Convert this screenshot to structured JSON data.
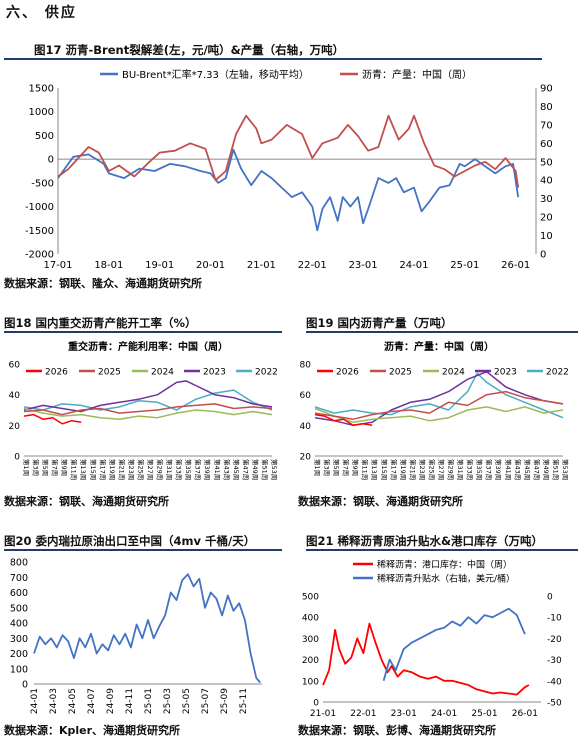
{
  "section": {
    "title": "六、  供应"
  },
  "figures": [
    {
      "title": "图17  沥青-Brent裂解差(左，元/吨）&产量（右轴，万吨）",
      "source": "数据来源：钢联、隆众、海通期货研究所"
    },
    {
      "title": "图18  国内重交沥青产能开工率（%）",
      "source": "数据来源：钢联、海通期货研究所"
    },
    {
      "title": "图19  国内沥青产量（万吨）",
      "source": "数据来源：钢联、海通期货研究所"
    },
    {
      "title": "图20  委内瑞拉原油出口至中国（4mv 千桶/天）",
      "source": "数据来源：Kpler、海通期货研究所"
    },
    {
      "title": "图21  稀释沥青原油升贴水&港口库存（万吨）",
      "source": "数据来源：钢联、彭博、海通期货研究所"
    }
  ],
  "chart_data": [
    {
      "type": "line",
      "legend": [
        "BU-Brent*汇率*7.33（左轴，移动平均）",
        "沥青：产量：中国（周）"
      ],
      "x_ticks": [
        "17-01",
        "18-01",
        "19-01",
        "20-01",
        "21-01",
        "22-01",
        "23-01",
        "24-01",
        "25-01",
        "26-01"
      ],
      "ylim_left": [
        -2000,
        1500
      ],
      "yticks_left": [
        -2000,
        -1500,
        -1000,
        -500,
        0,
        500,
        1000,
        1500
      ],
      "ylim_right": [
        0,
        90
      ],
      "yticks_right": [
        0,
        10,
        20,
        30,
        40,
        50,
        60,
        70,
        80,
        90
      ],
      "series": [
        {
          "name": "BU-Brent*汇率*7.33（左轴，移动平均）",
          "axis": "left",
          "color": "#4472c4",
          "x": [
            2017.0,
            2017.3,
            2017.6,
            2017.9,
            2018.0,
            2018.3,
            2018.6,
            2018.9,
            2019.2,
            2019.5,
            2019.8,
            2020.0,
            2020.15,
            2020.3,
            2020.45,
            2020.6,
            2020.8,
            2021.0,
            2021.2,
            2021.4,
            2021.6,
            2021.8,
            2022.0,
            2022.1,
            2022.2,
            2022.35,
            2022.5,
            2022.6,
            2022.75,
            2022.9,
            2023.0,
            2023.1,
            2023.3,
            2023.5,
            2023.65,
            2023.8,
            2024.0,
            2024.15,
            2024.3,
            2024.5,
            2024.7,
            2024.9,
            2025.0,
            2025.2,
            2025.4,
            2025.6,
            2025.8,
            2025.95,
            2026.05
          ],
          "y": [
            -400,
            50,
            100,
            -100,
            -300,
            -400,
            -200,
            -250,
            -100,
            -150,
            -250,
            -300,
            -500,
            -400,
            200,
            -200,
            -550,
            -250,
            -400,
            -600,
            -800,
            -700,
            -1000,
            -1500,
            -1050,
            -800,
            -1300,
            -800,
            -1000,
            -800,
            -1350,
            -1050,
            -400,
            -500,
            -400,
            -700,
            -600,
            -1100,
            -900,
            -600,
            -550,
            -100,
            -150,
            0,
            -150,
            -300,
            -150,
            -100,
            -800
          ]
        },
        {
          "name": "沥青：产量：中国（周）",
          "axis": "right",
          "color": "#c0504d",
          "x": [
            2017.0,
            2017.2,
            2017.4,
            2017.6,
            2017.8,
            2018.0,
            2018.2,
            2018.5,
            2018.8,
            2019.0,
            2019.3,
            2019.6,
            2019.9,
            2020.1,
            2020.3,
            2020.5,
            2020.7,
            2020.9,
            2021.0,
            2021.2,
            2021.5,
            2021.8,
            2022.0,
            2022.2,
            2022.5,
            2022.7,
            2022.9,
            2023.1,
            2023.3,
            2023.5,
            2023.7,
            2023.9,
            2024.0,
            2024.2,
            2024.4,
            2024.6,
            2024.8,
            2025.0,
            2025.2,
            2025.4,
            2025.6,
            2025.8,
            2026.0,
            2026.05
          ],
          "y": [
            42,
            46,
            52,
            58,
            55,
            45,
            48,
            42,
            50,
            55,
            56,
            60,
            57,
            40,
            45,
            65,
            75,
            68,
            60,
            62,
            70,
            65,
            52,
            60,
            63,
            70,
            64,
            56,
            58,
            75,
            62,
            68,
            75,
            60,
            48,
            46,
            42,
            45,
            48,
            50,
            46,
            52,
            45,
            36
          ]
        }
      ]
    },
    {
      "type": "line",
      "title": "重交沥青：产能利用率：中国（周）",
      "legend": [
        "2026",
        "2025",
        "2024",
        "2023",
        "2022"
      ],
      "x_ticks": [
        "第1周",
        "第3周",
        "第5周",
        "第7周",
        "第9周",
        "第11周",
        "第13周",
        "第15周",
        "第17周",
        "第19周",
        "第21周",
        "第23周",
        "第25周",
        "第27周",
        "第29周",
        "第31周",
        "第33周",
        "第35周",
        "第37周",
        "第39周",
        "第41周",
        "第43周",
        "第45周",
        "第47周",
        "第49周",
        "第51周",
        "第53周"
      ],
      "ylim": [
        0,
        60
      ],
      "yticks": [
        0,
        20,
        40,
        60
      ],
      "series": [
        {
          "name": "2026",
          "color": "#ff0000",
          "x": [
            1,
            3,
            5,
            7,
            9,
            11,
            13
          ],
          "y": [
            26,
            27,
            24,
            25,
            21,
            23,
            22
          ]
        },
        {
          "name": "2025",
          "color": "#c0504d",
          "x": [
            1,
            5,
            9,
            13,
            17,
            21,
            25,
            29,
            33,
            37,
            41,
            45,
            49,
            53
          ],
          "y": [
            29,
            30,
            27,
            30,
            31,
            28,
            29,
            30,
            32,
            33,
            34,
            31,
            32,
            31
          ]
        },
        {
          "name": "2024",
          "color": "#9bbb59",
          "x": [
            1,
            5,
            9,
            13,
            17,
            21,
            25,
            29,
            33,
            37,
            41,
            45,
            49,
            53
          ],
          "y": [
            31,
            28,
            26,
            27,
            25,
            24,
            26,
            25,
            28,
            30,
            29,
            27,
            29,
            27
          ]
        },
        {
          "name": "2023",
          "color": "#7030a0",
          "x": [
            1,
            5,
            9,
            13,
            17,
            21,
            25,
            29,
            33,
            35,
            37,
            41,
            45,
            49,
            53
          ],
          "y": [
            30,
            33,
            31,
            29,
            33,
            35,
            37,
            40,
            48,
            49,
            46,
            40,
            38,
            34,
            32
          ]
        },
        {
          "name": "2022",
          "color": "#4bacc6",
          "x": [
            1,
            5,
            9,
            13,
            17,
            21,
            25,
            29,
            33,
            37,
            41,
            45,
            49,
            53
          ],
          "y": [
            32,
            30,
            34,
            33,
            30,
            32,
            36,
            35,
            30,
            37,
            41,
            43,
            35,
            30
          ]
        }
      ]
    },
    {
      "type": "line",
      "title": "沥青：产量：中国（周）",
      "legend": [
        "2026",
        "2025",
        "2024",
        "2023",
        "2022"
      ],
      "x_ticks": [
        "第1周",
        "第3周",
        "第5周",
        "第7周",
        "第9周",
        "第11周",
        "第13周",
        "第15周",
        "第17周",
        "第19周",
        "第21周",
        "第23周",
        "第25周",
        "第27周",
        "第29周",
        "第31周",
        "第33周",
        "第35周",
        "第37周",
        "第39周",
        "第41周",
        "第43周",
        "第45周",
        "第47周",
        "第49周",
        "第51周",
        "第53周"
      ],
      "ylim": [
        20,
        80
      ],
      "yticks": [
        20,
        40,
        60,
        80
      ],
      "series": [
        {
          "name": "2026",
          "color": "#ff0000",
          "x": [
            1,
            3,
            5,
            7,
            9,
            11,
            13
          ],
          "y": [
            47,
            46,
            43,
            44,
            40,
            41,
            40
          ]
        },
        {
          "name": "2025",
          "color": "#c0504d",
          "x": [
            1,
            5,
            9,
            13,
            17,
            21,
            25,
            29,
            33,
            37,
            41,
            45,
            49,
            53
          ],
          "y": [
            48,
            46,
            44,
            47,
            49,
            50,
            48,
            55,
            53,
            60,
            62,
            58,
            56,
            54
          ]
        },
        {
          "name": "2024",
          "color": "#9bbb59",
          "x": [
            1,
            5,
            9,
            13,
            17,
            21,
            25,
            29,
            33,
            37,
            41,
            45,
            49,
            53
          ],
          "y": [
            51,
            46,
            42,
            44,
            45,
            46,
            43,
            45,
            50,
            52,
            49,
            52,
            48,
            50
          ]
        },
        {
          "name": "2023",
          "color": "#7030a0",
          "x": [
            1,
            5,
            9,
            13,
            17,
            21,
            25,
            29,
            33,
            37,
            41,
            45,
            49,
            53
          ],
          "y": [
            45,
            43,
            40,
            42,
            50,
            55,
            57,
            62,
            70,
            75,
            65,
            60,
            56,
            54
          ]
        },
        {
          "name": "2022",
          "color": "#4bacc6",
          "x": [
            1,
            5,
            9,
            13,
            17,
            21,
            25,
            29,
            33,
            35,
            37,
            41,
            45,
            49,
            53
          ],
          "y": [
            52,
            48,
            50,
            48,
            47,
            52,
            54,
            50,
            62,
            74,
            68,
            60,
            55,
            50,
            45
          ]
        }
      ]
    },
    {
      "type": "line",
      "x_ticks": [
        "24-01",
        "24-03",
        "24-05",
        "24-07",
        "24-09",
        "24-11",
        "25-01",
        "25-03",
        "25-05",
        "25-07",
        "25-09",
        "25-11"
      ],
      "ylim": [
        0,
        800
      ],
      "yticks": [
        0,
        100,
        200,
        300,
        400,
        500,
        600,
        700,
        800
      ],
      "series": [
        {
          "name": "",
          "color": "#4472c4",
          "x": [
            0,
            0.3,
            0.6,
            0.9,
            1.2,
            1.5,
            1.8,
            2.1,
            2.4,
            2.7,
            3.0,
            3.3,
            3.6,
            3.9,
            4.2,
            4.5,
            4.8,
            5.1,
            5.4,
            5.7,
            6.0,
            6.3,
            6.6,
            6.9,
            7.2,
            7.5,
            7.8,
            8.1,
            8.4,
            8.7,
            9.0,
            9.3,
            9.6,
            9.9,
            10.2,
            10.5,
            10.8,
            11.1,
            11.4,
            11.7,
            11.9
          ],
          "y": [
            200,
            310,
            260,
            300,
            240,
            320,
            280,
            170,
            300,
            240,
            330,
            200,
            260,
            220,
            320,
            260,
            330,
            240,
            390,
            300,
            420,
            300,
            380,
            450,
            600,
            550,
            680,
            720,
            640,
            690,
            500,
            600,
            560,
            450,
            580,
            480,
            530,
            420,
            200,
            40,
            10
          ]
        }
      ]
    },
    {
      "type": "line",
      "legend": [
        "稀释沥青：港口库存：中国（周）",
        "稀释沥青升贴水（右轴，美元/桶）"
      ],
      "x_ticks": [
        "21-01",
        "22-01",
        "23-01",
        "24-01",
        "25-01",
        "26-01"
      ],
      "ylim_left": [
        0,
        500
      ],
      "yticks_left": [
        0,
        100,
        200,
        300,
        400,
        500
      ],
      "ylim_right": [
        -50,
        0
      ],
      "yticks_right": [
        -50,
        -40,
        -30,
        -20,
        -10,
        0
      ],
      "series": [
        {
          "name": "稀释沥青：港口库存：中国（周）",
          "axis": "left",
          "color": "#ff0000",
          "x": [
            2021.0,
            2021.15,
            2021.3,
            2021.4,
            2021.55,
            2021.7,
            2021.85,
            2022.0,
            2022.15,
            2022.3,
            2022.45,
            2022.6,
            2022.7,
            2022.85,
            2023.0,
            2023.2,
            2023.4,
            2023.6,
            2023.8,
            2024.0,
            2024.2,
            2024.4,
            2024.6,
            2024.8,
            2025.0,
            2025.2,
            2025.4,
            2025.6,
            2025.8,
            2026.0,
            2026.1
          ],
          "y": [
            80,
            150,
            340,
            250,
            180,
            210,
            300,
            230,
            370,
            280,
            200,
            140,
            170,
            120,
            150,
            140,
            120,
            110,
            120,
            100,
            100,
            90,
            80,
            60,
            50,
            40,
            45,
            40,
            35,
            70,
            80
          ]
        },
        {
          "name": "稀释沥青升贴水（右轴，美元/桶）",
          "axis": "right",
          "color": "#4472c4",
          "x": [
            2022.5,
            2022.65,
            2022.8,
            2023.0,
            2023.2,
            2023.4,
            2023.6,
            2023.8,
            2024.0,
            2024.2,
            2024.4,
            2024.6,
            2024.8,
            2025.0,
            2025.2,
            2025.4,
            2025.6,
            2025.8,
            2026.0
          ],
          "y": [
            -40,
            -30,
            -35,
            -25,
            -22,
            -20,
            -18,
            -16,
            -15,
            -12,
            -14,
            -10,
            -13,
            -9,
            -10,
            -8,
            -6,
            -9,
            -18
          ]
        }
      ]
    }
  ]
}
